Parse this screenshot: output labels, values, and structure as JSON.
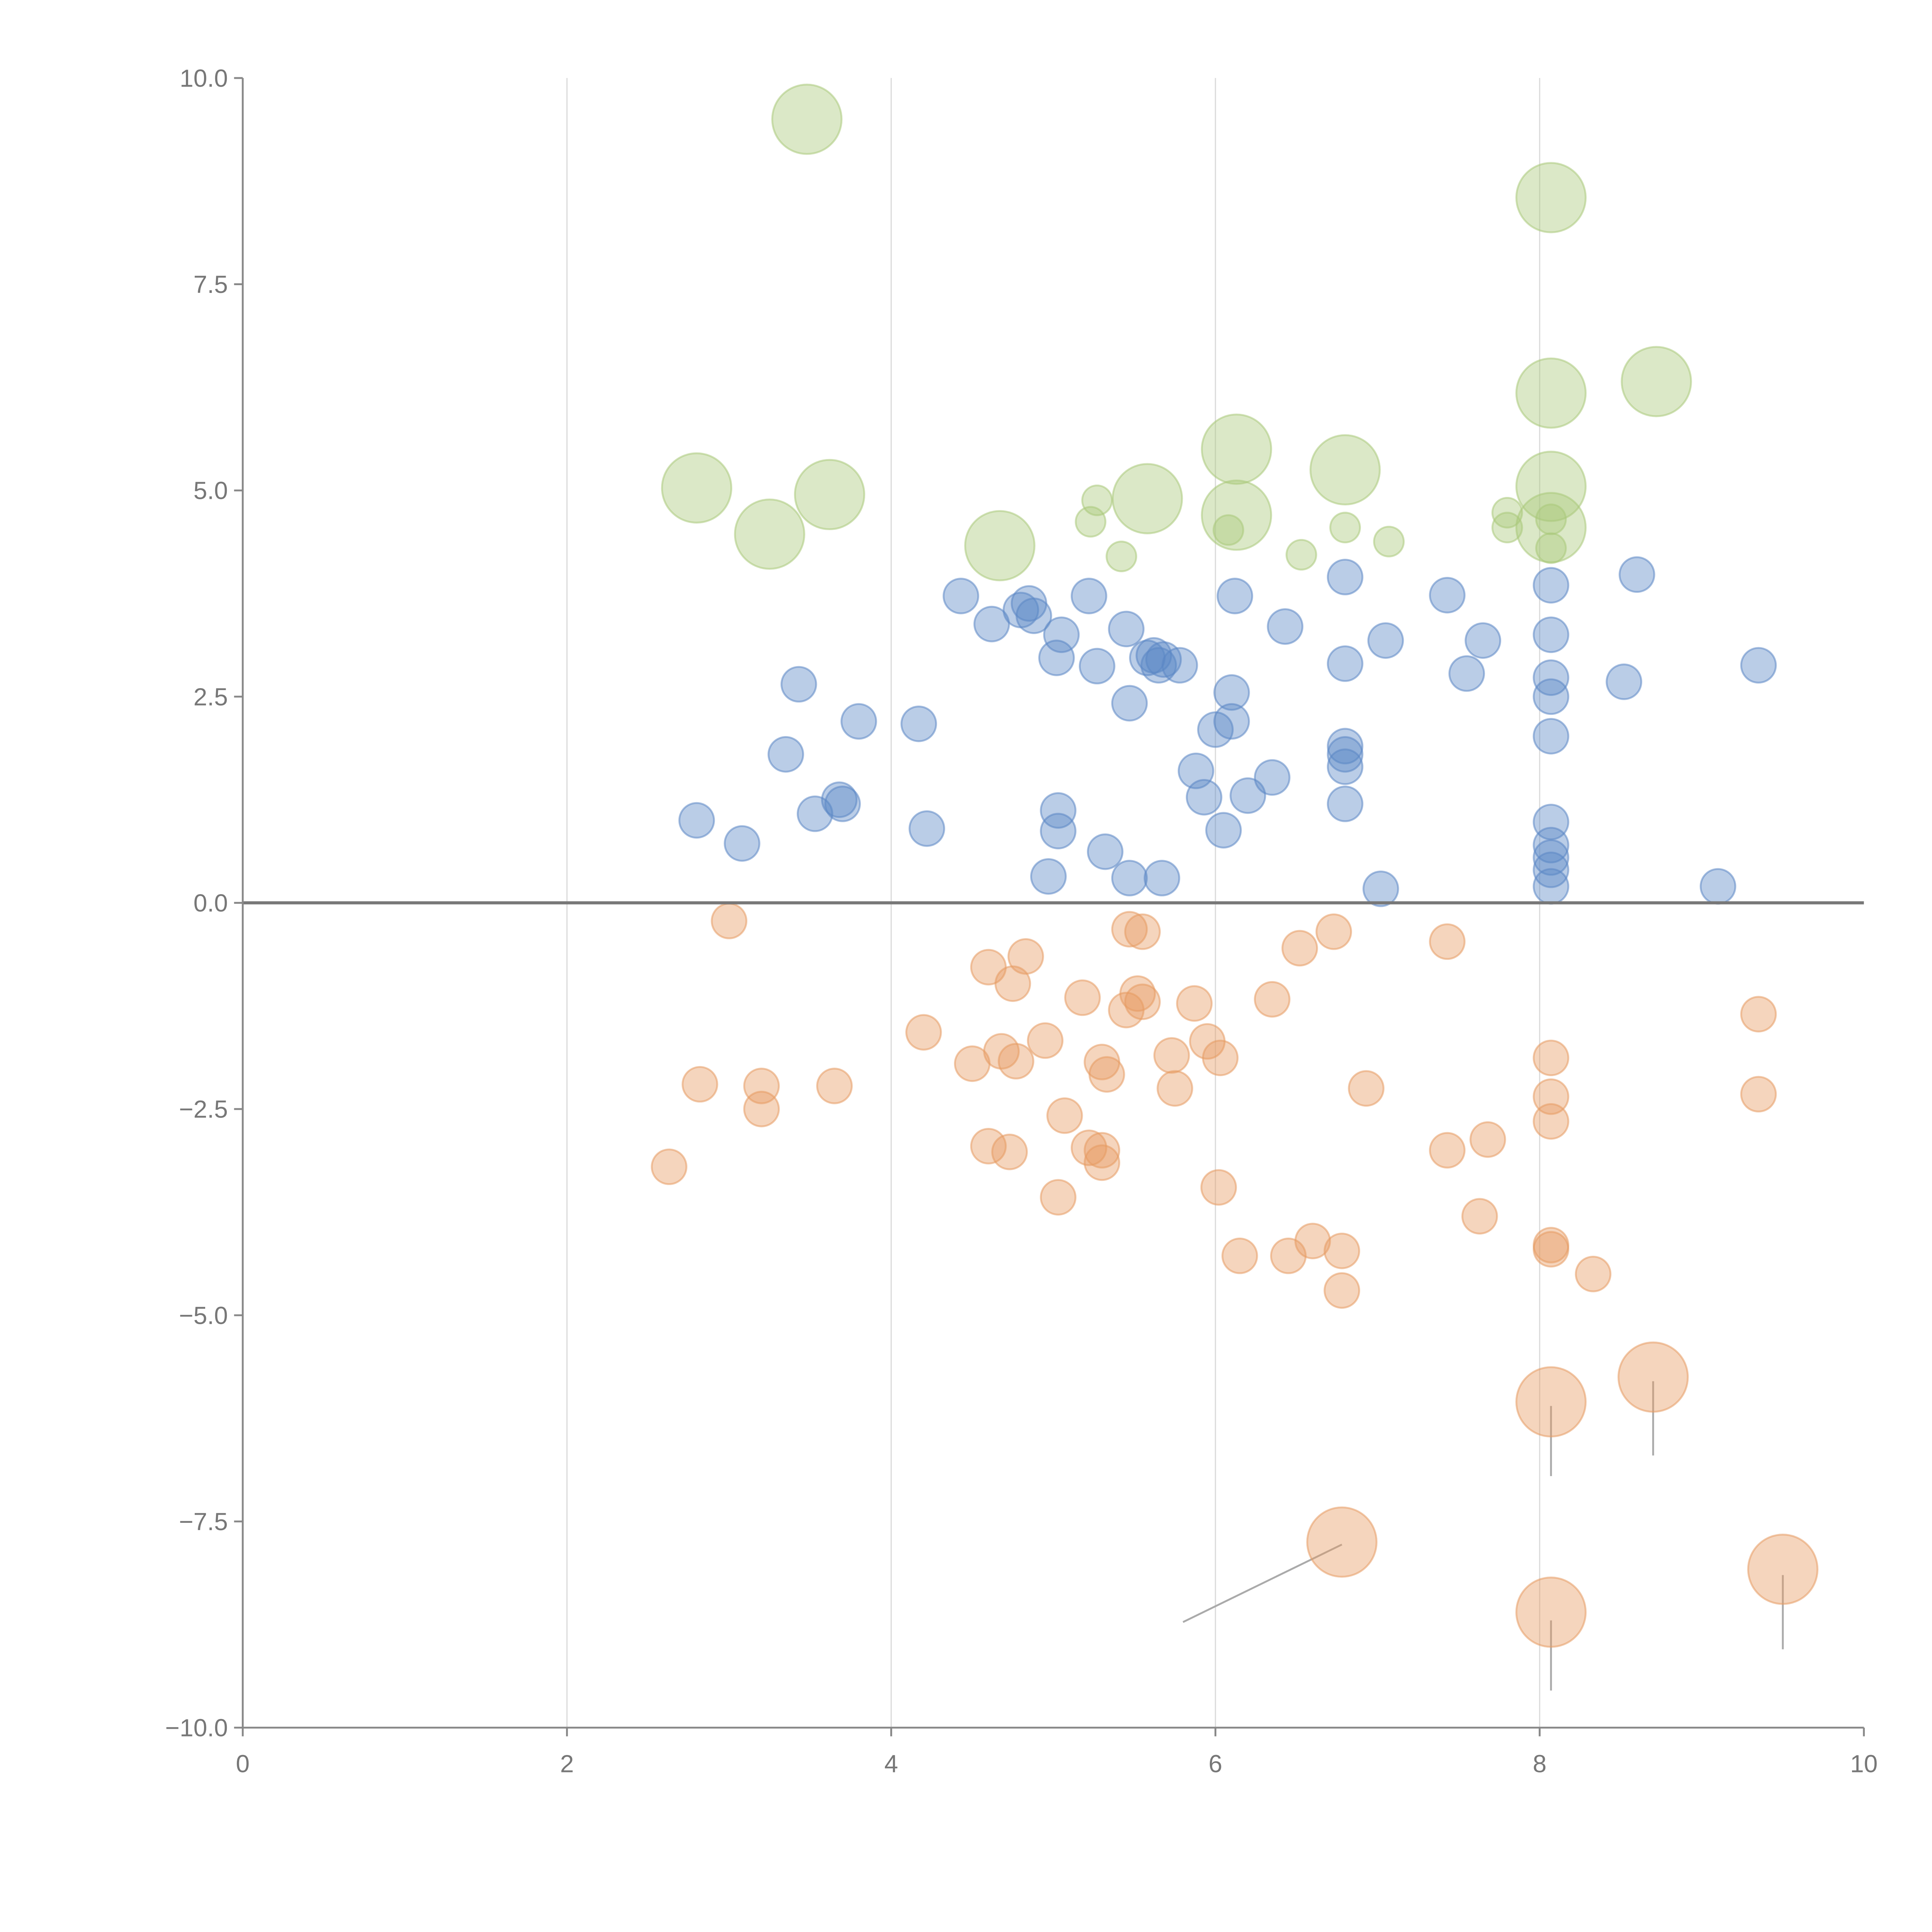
{
  "chart_data": {
    "type": "scatter",
    "title": "",
    "xlabel": "",
    "ylabel": "",
    "xlim": [
      0,
      10
    ],
    "ylim": [
      -10,
      10
    ],
    "grid": "vertical",
    "x_ticks": [
      "0",
      "2",
      "4",
      "6",
      "8",
      "10"
    ],
    "x_tick_values": [
      0,
      2,
      4,
      6,
      8,
      10
    ],
    "y_ticks": [
      "10.0",
      "7.5",
      "5.0",
      "2.5",
      "0.0",
      "−2.5",
      "−5.0",
      "−7.5",
      "−10.0"
    ],
    "y_tick_values": [
      10,
      7.5,
      5,
      2.5,
      0,
      -2.5,
      -5,
      -7.5,
      -10
    ],
    "reference_line_y": 0,
    "series": [
      {
        "name": "green",
        "color": "#a9c97a",
        "points": [
          [
            3.48,
            9.5,
            "L"
          ],
          [
            8.07,
            8.55,
            "L"
          ],
          [
            8.07,
            6.18,
            "L"
          ],
          [
            8.72,
            6.32,
            "L"
          ],
          [
            2.8,
            5.03,
            "L"
          ],
          [
            3.62,
            4.95,
            "L"
          ],
          [
            3.25,
            4.47,
            "L"
          ],
          [
            4.67,
            4.33,
            "L"
          ],
          [
            5.58,
            4.9,
            "L"
          ],
          [
            6.13,
            5.5,
            "L"
          ],
          [
            6.13,
            4.7,
            "L"
          ],
          [
            6.8,
            5.25,
            "L"
          ],
          [
            8.07,
            5.05,
            "L"
          ],
          [
            8.07,
            4.55,
            "L"
          ],
          [
            5.27,
            4.88,
            "S"
          ],
          [
            5.23,
            4.62,
            "S"
          ],
          [
            5.42,
            4.2,
            "S"
          ],
          [
            6.08,
            4.52,
            "S"
          ],
          [
            6.53,
            4.22,
            "S"
          ],
          [
            6.8,
            4.55,
            "S"
          ],
          [
            7.07,
            4.38,
            "S"
          ],
          [
            7.8,
            4.73,
            "S"
          ],
          [
            7.8,
            4.55,
            "S"
          ],
          [
            8.07,
            4.65,
            "S"
          ],
          [
            8.07,
            4.3,
            "S"
          ]
        ]
      },
      {
        "name": "blue",
        "color": "#5b87c5",
        "points": [
          [
            2.8,
            1.0
          ],
          [
            3.08,
            0.72
          ],
          [
            3.43,
            2.65
          ],
          [
            3.35,
            1.8
          ],
          [
            3.53,
            1.08
          ],
          [
            3.68,
            1.25
          ],
          [
            3.7,
            1.2
          ],
          [
            3.8,
            2.2
          ],
          [
            4.17,
            2.17
          ],
          [
            4.22,
            0.9
          ],
          [
            4.43,
            3.72
          ],
          [
            4.62,
            3.38
          ],
          [
            4.8,
            3.55
          ],
          [
            4.85,
            3.63
          ],
          [
            4.88,
            3.48
          ],
          [
            5.02,
            2.97
          ],
          [
            5.05,
            3.25
          ],
          [
            5.03,
            1.12
          ],
          [
            5.03,
            0.87
          ],
          [
            4.97,
            0.32
          ],
          [
            5.22,
            3.72
          ],
          [
            5.27,
            2.87
          ],
          [
            5.32,
            0.62
          ],
          [
            5.45,
            3.32
          ],
          [
            5.47,
            2.42
          ],
          [
            5.47,
            0.3
          ],
          [
            5.58,
            2.97
          ],
          [
            5.62,
            3.0
          ],
          [
            5.65,
            2.88
          ],
          [
            5.68,
            2.95
          ],
          [
            5.78,
            2.88
          ],
          [
            5.67,
            0.3
          ],
          [
            5.88,
            1.6
          ],
          [
            5.93,
            1.28
          ],
          [
            6.0,
            2.1
          ],
          [
            6.05,
            0.88
          ],
          [
            6.1,
            2.55
          ],
          [
            6.1,
            2.2
          ],
          [
            6.12,
            3.72
          ],
          [
            6.2,
            1.3
          ],
          [
            6.35,
            1.52
          ],
          [
            6.43,
            3.35
          ],
          [
            6.8,
            3.95
          ],
          [
            6.8,
            2.9
          ],
          [
            6.8,
            1.9
          ],
          [
            6.8,
            1.8
          ],
          [
            6.8,
            1.65
          ],
          [
            6.8,
            1.2
          ],
          [
            7.02,
            0.17
          ],
          [
            7.05,
            3.18
          ],
          [
            7.43,
            3.73
          ],
          [
            7.55,
            2.78
          ],
          [
            7.65,
            3.18
          ],
          [
            8.07,
            3.85
          ],
          [
            8.07,
            3.25
          ],
          [
            8.07,
            2.73
          ],
          [
            8.07,
            2.5
          ],
          [
            8.07,
            2.02
          ],
          [
            8.07,
            0.98
          ],
          [
            8.07,
            0.7
          ],
          [
            8.07,
            0.55
          ],
          [
            8.07,
            0.4
          ],
          [
            8.07,
            0.2
          ],
          [
            8.52,
            2.68
          ],
          [
            8.6,
            3.98
          ],
          [
            9.1,
            0.2
          ],
          [
            9.35,
            2.88
          ]
        ]
      },
      {
        "name": "orange",
        "color": "#e69a62",
        "points": [
          [
            2.63,
            -3.2
          ],
          [
            2.82,
            -2.2
          ],
          [
            3.0,
            -0.22
          ],
          [
            3.2,
            -2.22
          ],
          [
            3.2,
            -2.5
          ],
          [
            3.65,
            -2.22
          ],
          [
            4.2,
            -1.57
          ],
          [
            4.5,
            -1.95
          ],
          [
            4.6,
            -0.78
          ],
          [
            4.6,
            -2.95
          ],
          [
            4.68,
            -1.8
          ],
          [
            4.73,
            -3.02
          ],
          [
            4.75,
            -0.98
          ],
          [
            4.77,
            -1.92
          ],
          [
            4.83,
            -0.65
          ],
          [
            4.95,
            -1.67
          ],
          [
            5.03,
            -3.57
          ],
          [
            5.07,
            -2.58
          ],
          [
            5.18,
            -1.15
          ],
          [
            5.22,
            -2.97
          ],
          [
            5.3,
            -1.93
          ],
          [
            5.3,
            -3.0
          ],
          [
            5.3,
            -3.15
          ],
          [
            5.33,
            -2.08
          ],
          [
            5.45,
            -1.3
          ],
          [
            5.47,
            -0.32
          ],
          [
            5.52,
            -1.1
          ],
          [
            5.55,
            -0.35
          ],
          [
            5.55,
            -1.2
          ],
          [
            5.73,
            -1.85
          ],
          [
            5.75,
            -2.25
          ],
          [
            5.87,
            -1.22
          ],
          [
            5.95,
            -1.68
          ],
          [
            6.02,
            -3.45
          ],
          [
            6.03,
            -1.88
          ],
          [
            6.15,
            -4.28
          ],
          [
            6.35,
            -1.17
          ],
          [
            6.45,
            -4.28
          ],
          [
            6.52,
            -0.55
          ],
          [
            6.6,
            -4.1
          ],
          [
            6.73,
            -0.35
          ],
          [
            6.78,
            -4.22
          ],
          [
            6.78,
            -4.7
          ],
          [
            6.93,
            -2.25
          ],
          [
            7.43,
            -0.47
          ],
          [
            7.43,
            -3.0
          ],
          [
            7.63,
            -3.8
          ],
          [
            7.68,
            -2.87
          ],
          [
            8.07,
            -1.88
          ],
          [
            8.07,
            -2.35
          ],
          [
            8.07,
            -2.65
          ],
          [
            8.07,
            -4.15
          ],
          [
            8.07,
            -4.2
          ],
          [
            8.33,
            -4.5
          ],
          [
            9.35,
            -1.35
          ],
          [
            9.35,
            -2.32
          ],
          [
            8.07,
            -6.05,
            "L"
          ],
          [
            8.7,
            -5.75,
            "L"
          ],
          [
            6.78,
            -7.75,
            "L"
          ],
          [
            9.5,
            -8.08,
            "L"
          ],
          [
            8.07,
            -8.6,
            "L"
          ]
        ],
        "leader_lines": [
          [
            8.07,
            -6.1,
            8.07,
            -6.95
          ],
          [
            8.7,
            -5.8,
            8.7,
            -6.7
          ],
          [
            6.78,
            -7.78,
            5.8,
            -8.72
          ],
          [
            9.5,
            -8.15,
            9.5,
            -9.05
          ],
          [
            8.07,
            -8.7,
            8.07,
            -9.55
          ]
        ]
      }
    ]
  }
}
